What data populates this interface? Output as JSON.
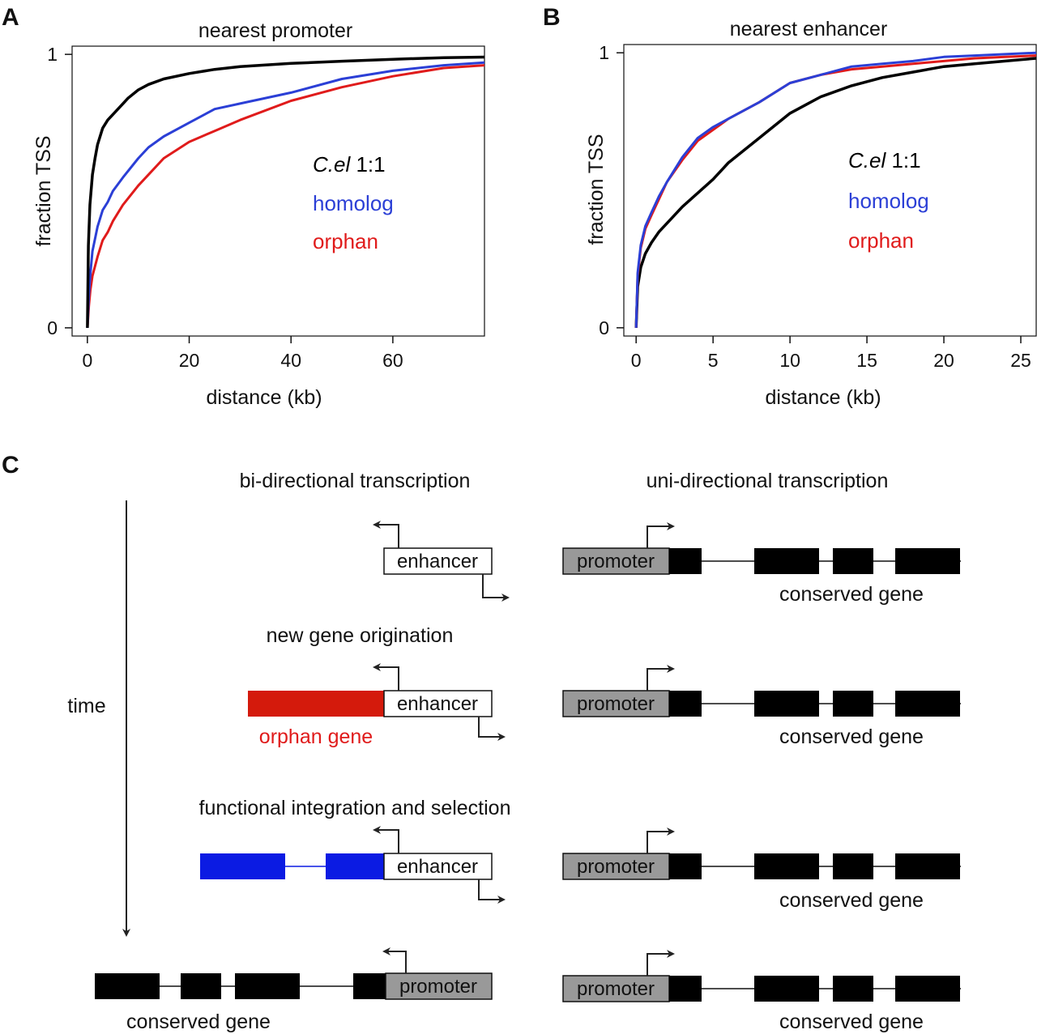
{
  "colors": {
    "cel": "#000000",
    "homolog": "#2b3fd6",
    "orphan": "#e01b1b",
    "orphan_gene_fill": "#d41a0c",
    "homolog_gene_fill": "#0b1be3",
    "promoter_fill": "#999999",
    "exon_fill": "#000000"
  },
  "chart_data": [
    {
      "panel": "A",
      "type": "line",
      "title": "nearest promoter",
      "xlabel": "distance (kb)",
      "ylabel": "fraction TSS",
      "xlim": [
        -3,
        78
      ],
      "ylim": [
        -0.03,
        1.03
      ],
      "xticks": [
        0,
        20,
        40,
        60
      ],
      "yticks": [
        0,
        1
      ],
      "grid": false,
      "legend": {
        "placement": "center-right",
        "entries": [
          {
            "key": "cel",
            "text_italic": "C.el",
            "text_plain": " 1:1"
          },
          {
            "key": "homolog",
            "text_plain": "homolog"
          },
          {
            "key": "orphan",
            "text_plain": "orphan"
          }
        ]
      },
      "series": [
        {
          "key": "cel",
          "name": "C.el 1:1",
          "x": [
            0,
            0.2,
            0.5,
            1,
            1.5,
            2,
            3,
            4,
            5,
            6,
            8,
            10,
            12,
            15,
            20,
            25,
            30,
            40,
            50,
            60,
            70,
            78
          ],
          "y": [
            0,
            0.3,
            0.45,
            0.56,
            0.62,
            0.67,
            0.73,
            0.76,
            0.78,
            0.8,
            0.84,
            0.87,
            0.89,
            0.91,
            0.93,
            0.945,
            0.955,
            0.967,
            0.975,
            0.982,
            0.988,
            0.99
          ]
        },
        {
          "key": "homolog",
          "name": "homolog",
          "x": [
            0,
            0.3,
            0.6,
            1,
            2,
            3,
            4,
            5,
            7,
            10,
            12,
            15,
            20,
            25,
            30,
            40,
            50,
            60,
            70,
            78
          ],
          "y": [
            0,
            0.12,
            0.2,
            0.28,
            0.37,
            0.43,
            0.46,
            0.5,
            0.55,
            0.62,
            0.66,
            0.7,
            0.75,
            0.8,
            0.82,
            0.86,
            0.91,
            0.94,
            0.96,
            0.97
          ]
        },
        {
          "key": "orphan",
          "name": "orphan",
          "x": [
            0,
            0.3,
            0.6,
            1,
            2,
            3,
            4,
            5,
            7,
            10,
            12,
            15,
            20,
            25,
            30,
            40,
            50,
            60,
            70,
            78
          ],
          "y": [
            0,
            0.08,
            0.14,
            0.19,
            0.26,
            0.32,
            0.35,
            0.39,
            0.45,
            0.52,
            0.56,
            0.62,
            0.68,
            0.72,
            0.76,
            0.83,
            0.88,
            0.92,
            0.95,
            0.96
          ]
        }
      ]
    },
    {
      "panel": "B",
      "type": "line",
      "title": "nearest enhancer",
      "xlabel": "distance (kb)",
      "ylabel": "fraction TSS",
      "xlim": [
        -0.8,
        26
      ],
      "ylim": [
        -0.03,
        1.03
      ],
      "xticks": [
        0,
        5,
        10,
        15,
        20,
        25
      ],
      "yticks": [
        0,
        1
      ],
      "grid": false,
      "legend": {
        "placement": "center-right",
        "entries": [
          {
            "key": "cel",
            "text_italic": "C.el",
            "text_plain": " 1:1"
          },
          {
            "key": "homolog",
            "text_plain": "homolog"
          },
          {
            "key": "orphan",
            "text_plain": "orphan"
          }
        ]
      },
      "series": [
        {
          "key": "cel",
          "name": "C.el 1:1",
          "x": [
            0,
            0.1,
            0.3,
            0.6,
            1,
            1.5,
            2,
            3,
            4,
            5,
            6,
            8,
            10,
            12,
            14,
            16,
            18,
            20,
            22,
            24,
            26
          ],
          "y": [
            0,
            0.15,
            0.22,
            0.27,
            0.31,
            0.35,
            0.38,
            0.44,
            0.49,
            0.54,
            0.6,
            0.69,
            0.78,
            0.84,
            0.88,
            0.91,
            0.93,
            0.95,
            0.96,
            0.97,
            0.98
          ]
        },
        {
          "key": "homolog",
          "name": "homolog",
          "x": [
            0,
            0.1,
            0.3,
            0.6,
            1,
            1.5,
            2,
            3,
            4,
            5,
            6,
            8,
            10,
            12,
            14,
            16,
            18,
            20,
            22,
            24,
            26
          ],
          "y": [
            0,
            0.2,
            0.3,
            0.37,
            0.42,
            0.48,
            0.53,
            0.62,
            0.69,
            0.73,
            0.76,
            0.82,
            0.89,
            0.92,
            0.95,
            0.96,
            0.97,
            0.985,
            0.99,
            0.995,
            1.0
          ]
        },
        {
          "key": "orphan",
          "name": "orphan",
          "x": [
            0,
            0.1,
            0.3,
            0.6,
            1,
            1.5,
            2,
            3,
            4,
            5,
            6,
            8,
            10,
            12,
            14,
            16,
            18,
            20,
            22,
            24,
            26
          ],
          "y": [
            0,
            0.19,
            0.29,
            0.36,
            0.41,
            0.47,
            0.53,
            0.61,
            0.68,
            0.72,
            0.76,
            0.82,
            0.89,
            0.92,
            0.94,
            0.95,
            0.96,
            0.97,
            0.98,
            0.985,
            0.99
          ]
        }
      ]
    }
  ],
  "panels": {
    "a_letter": "A",
    "b_letter": "B",
    "c_letter": "C"
  },
  "diagram": {
    "header_bi": "bi-directional transcription",
    "header_uni": "uni-directional transcription",
    "time_label": "time",
    "new_gene_label": "new gene origination",
    "functional_label": "functional integration and selection",
    "enhancer_label": "enhancer",
    "promoter_label": "promoter",
    "conserved_gene_label": "conserved gene",
    "orphan_gene_label": "orphan gene"
  }
}
